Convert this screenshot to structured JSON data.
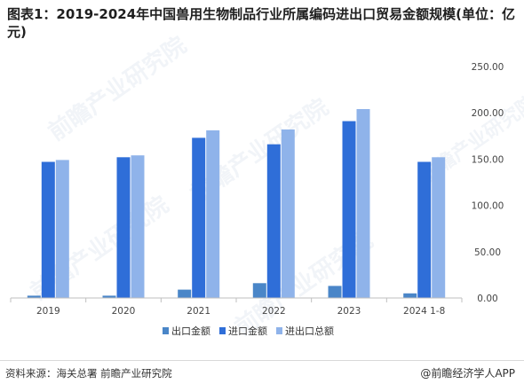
{
  "header": {
    "title": "图表1：2019-2024年中国兽用生物制品行业所属编码进出口贸易金额规模(单位：亿元)"
  },
  "footer": {
    "source": "资料来源：海关总署 前瞻产业研究院",
    "brand": "@前瞻经济学人APP"
  },
  "watermark": {
    "text": "前瞻产业研究院"
  },
  "colors": {
    "export": "#4a86c8",
    "import": "#2f6ed8",
    "total": "#8fb3ea",
    "axis": "#bfbfbf",
    "tick_text": "#444444"
  },
  "chart_data": {
    "type": "bar",
    "title": "",
    "xlabel": "",
    "ylabel": "",
    "categories": [
      "2019",
      "2020",
      "2021",
      "2022",
      "2023",
      "2024 1-8"
    ],
    "series": [
      {
        "name": "出口金额",
        "values": [
          2.5,
          2.5,
          9,
          16,
          13,
          5
        ]
      },
      {
        "name": "进口金额",
        "values": [
          147,
          152,
          173,
          166,
          191,
          147
        ]
      },
      {
        "name": "进出口总额",
        "values": [
          149,
          154,
          181,
          182,
          204,
          152
        ]
      }
    ],
    "ylim": [
      0,
      250
    ],
    "yticks": [
      "0.00",
      "50.00",
      "100.00",
      "150.00",
      "200.00",
      "250.00"
    ],
    "grid": false,
    "legend_position": "bottom-center"
  }
}
